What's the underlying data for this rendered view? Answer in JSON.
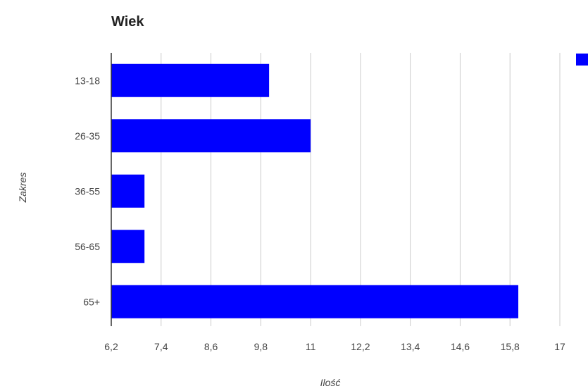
{
  "chart_data": {
    "type": "bar",
    "orientation": "horizontal",
    "title": "Wiek",
    "xlabel": "Ilość",
    "ylabel": "Zakres",
    "categories": [
      "13-18",
      "26-35",
      "36-55",
      "56-65",
      "65+"
    ],
    "values": [
      10,
      11,
      7,
      7,
      16
    ],
    "xlim": [
      6.2,
      17
    ],
    "xticks": [
      "6,2",
      "7,4",
      "8,6",
      "9,8",
      "11",
      "12,2",
      "13,4",
      "14,6",
      "15,8",
      "17"
    ],
    "grid": "vertical",
    "legend": "top-right",
    "colors": {
      "bar": "#0000ff",
      "grid": "#cccccc",
      "axis": "#333333"
    }
  }
}
